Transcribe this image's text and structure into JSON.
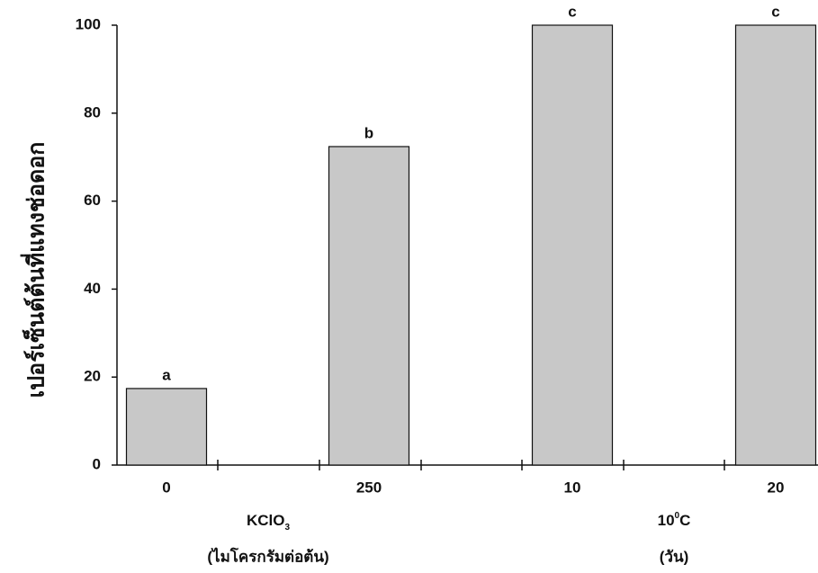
{
  "chart_data": {
    "type": "bar",
    "y_label": "เปอร์เซ็นต์ต้นที่แทงช่อดอก",
    "categories": [
      "0",
      "250",
      "10",
      "20"
    ],
    "values": [
      17.4,
      72.4,
      100,
      100
    ],
    "value_labels": [
      "a",
      "b",
      "c",
      "c"
    ],
    "color": "#c8c8c8",
    "ylim": [
      0,
      100
    ],
    "yticks": [
      0,
      20,
      40,
      60,
      80,
      100
    ],
    "groups": [
      {
        "label": [
          "KClO",
          "3"
        ],
        "unit": "(ไมโครกรัมต่อต้น)"
      },
      {
        "label": [
          "10",
          "0",
          "C"
        ],
        "unit": "(วัน)"
      }
    ]
  }
}
